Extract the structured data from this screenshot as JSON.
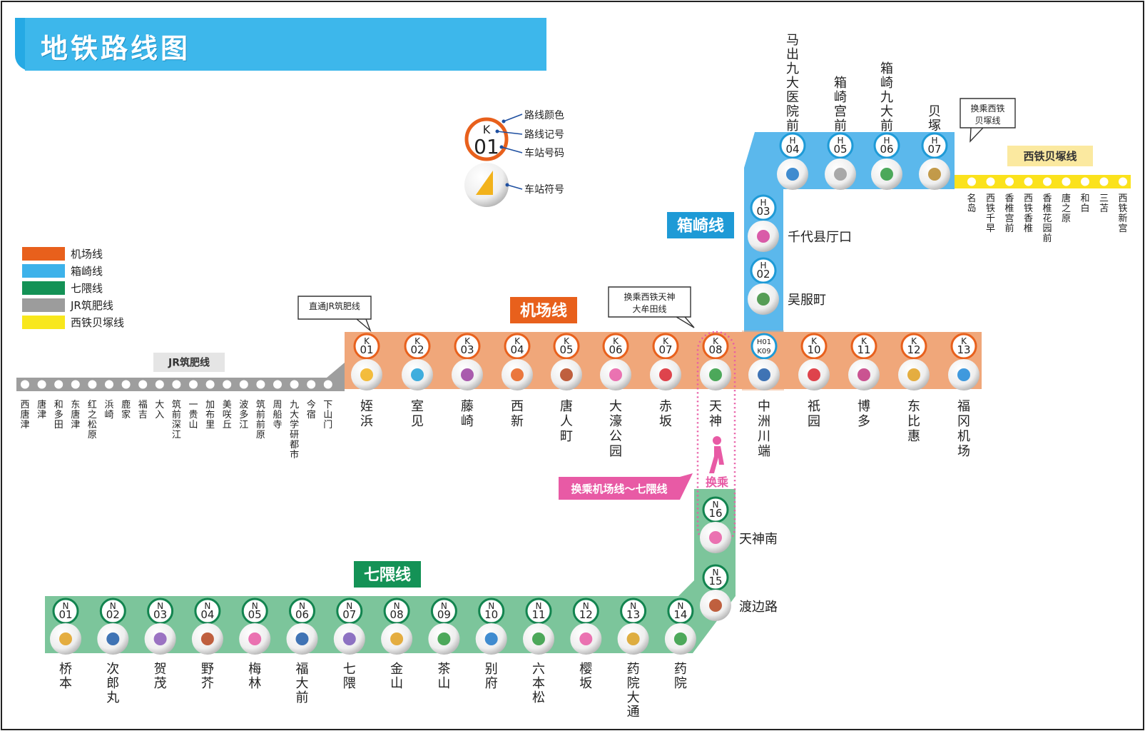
{
  "title": "地铁路线图",
  "colors": {
    "airport": "#f0a77a",
    "airport_dark": "#e8601c",
    "hakozaki": "#5bb8ec",
    "hakozaki_dark": "#1e9ad6",
    "nanakuma": "#7cc59b",
    "nanakuma_dark": "#12844f",
    "jr": "#9e9e9e",
    "nishitetsu": "#fbe21c",
    "transfer": "#e85aa5"
  },
  "legend": [
    {
      "label": "机场线",
      "color": "#e8601c"
    },
    {
      "label": "箱崎线",
      "color": "#3db2ea"
    },
    {
      "label": "七隈线",
      "color": "#149256"
    },
    {
      "label": "JR筑肥线",
      "color": "#9c9c9c"
    },
    {
      "label": "西铁贝塚线",
      "color": "#f8e71c"
    }
  ],
  "key": {
    "code": "K",
    "num": "01",
    "color_label": "路线颜色",
    "code_label": "路线记号",
    "num_label": "车站号码",
    "symbol_label": "车站符号"
  },
  "line_labels": {
    "airport": "机场线",
    "hakozaki": "箱崎线",
    "nanakuma": "七隈线",
    "jr": "JR筑肥线",
    "nishitetsu": "西铁贝塚线"
  },
  "callouts": {
    "jr_through": "直通JR筑肥线",
    "nishitetsu_tenjin_line1": "换乘西铁天神",
    "nishitetsu_tenjin_line2": "大牟田线",
    "nishitetsu_kaizuka_line1": "换乘西铁",
    "nishitetsu_kaizuka_line2": "贝塚线",
    "transfer": "换乘机场线～七隈线",
    "transfer_short": "换乘"
  },
  "airport_stations": [
    {
      "code": "K",
      "num": "01",
      "name": "姪浜",
      "icon": "sailboat-icon"
    },
    {
      "code": "K",
      "num": "02",
      "name": "室见",
      "icon": "waves-icon"
    },
    {
      "code": "K",
      "num": "03",
      "name": "藤崎",
      "icon": "wisteria-icon"
    },
    {
      "code": "K",
      "num": "04",
      "name": "西新",
      "icon": "letter-n-icon"
    },
    {
      "code": "K",
      "num": "05",
      "name": "唐人町",
      "icon": "vase-icon"
    },
    {
      "code": "K",
      "num": "06",
      "name": "大濠公园",
      "icon": "cherry-blossom-icon"
    },
    {
      "code": "K",
      "num": "07",
      "name": "赤坂",
      "icon": "runner-swoosh-icon"
    },
    {
      "code": "K",
      "num": "08",
      "name": "天神",
      "icon": "plum-blossom-icon"
    },
    {
      "code": "H01",
      "num": "K09",
      "name": "中洲川端",
      "icon": "river-pattern-icon"
    },
    {
      "code": "K",
      "num": "10",
      "name": "祇园",
      "icon": "festival-float-icon"
    },
    {
      "code": "K",
      "num": "11",
      "name": "博多",
      "icon": "hakata-textile-icon"
    },
    {
      "code": "K",
      "num": "12",
      "name": "东比惠",
      "icon": "pretzel-icon"
    },
    {
      "code": "K",
      "num": "13",
      "name": "福冈机场",
      "icon": "airplane-icon"
    }
  ],
  "hakozaki_stations": [
    {
      "code": "H",
      "num": "02",
      "name": "吴服町",
      "icon": "ship-icon"
    },
    {
      "code": "H",
      "num": "03",
      "name": "千代县厅口",
      "icon": "pink-figure-icon"
    },
    {
      "code": "H",
      "num": "04",
      "name": "马出九大医院前",
      "icon": "bird-icon"
    },
    {
      "code": "H",
      "num": "05",
      "name": "箱崎宫前",
      "icon": "torii-gate-icon"
    },
    {
      "code": "H",
      "num": "06",
      "name": "箱崎九大前",
      "icon": "pine-tree-icon"
    },
    {
      "code": "H",
      "num": "07",
      "name": "贝塚",
      "icon": "seashell-icon"
    }
  ],
  "nanakuma_stations": [
    {
      "code": "N",
      "num": "01",
      "name": "桥本",
      "icon": "mountain-dots-icon"
    },
    {
      "code": "N",
      "num": "02",
      "name": "次郎丸",
      "icon": "bird-flower-icon"
    },
    {
      "code": "N",
      "num": "03",
      "name": "贺茂",
      "icon": "purple-swirl-icon"
    },
    {
      "code": "N",
      "num": "04",
      "name": "野芥",
      "icon": "monkey-icon"
    },
    {
      "code": "N",
      "num": "05",
      "name": "梅林",
      "icon": "plum-branch-icon"
    },
    {
      "code": "N",
      "num": "06",
      "name": "福大前",
      "icon": "eagle-icon"
    },
    {
      "code": "N",
      "num": "07",
      "name": "七隈",
      "icon": "grapes-icon"
    },
    {
      "code": "N",
      "num": "08",
      "name": "金山",
      "icon": "golden-mountain-icon"
    },
    {
      "code": "N",
      "num": "09",
      "name": "茶山",
      "icon": "tea-leaf-icon"
    },
    {
      "code": "N",
      "num": "10",
      "name": "别府",
      "icon": "bridge-waves-icon"
    },
    {
      "code": "N",
      "num": "11",
      "name": "六本松",
      "icon": "pine-branch-icon"
    },
    {
      "code": "N",
      "num": "12",
      "name": "樱坂",
      "icon": "sakura-petals-icon"
    },
    {
      "code": "N",
      "num": "13",
      "name": "药院大通",
      "icon": "flower-cluster-icon"
    },
    {
      "code": "N",
      "num": "14",
      "name": "药院",
      "icon": "mortar-herb-icon"
    },
    {
      "code": "N",
      "num": "15",
      "name": "渡边路",
      "icon": "tram-icon"
    },
    {
      "code": "N",
      "num": "16",
      "name": "天神南",
      "icon": "ribbon-flowers-icon"
    }
  ],
  "jr_stations": [
    "西唐津",
    "唐津",
    "和多田",
    "东唐津",
    "红之松原",
    "浜崎",
    "鹿家",
    "福吉",
    "大入",
    "筑前深江",
    "一贵山",
    "加布里",
    "美咲丘",
    "波多江",
    "筑前前原",
    "周船寺",
    "九大学研都市",
    "今宿",
    "下山门"
  ],
  "nishitetsu_stations": [
    "名岛",
    "西铁千早",
    "香椎宫前",
    "西铁香椎",
    "香椎花园前",
    "唐之原",
    "和白",
    "三苫",
    "西铁新宫"
  ]
}
